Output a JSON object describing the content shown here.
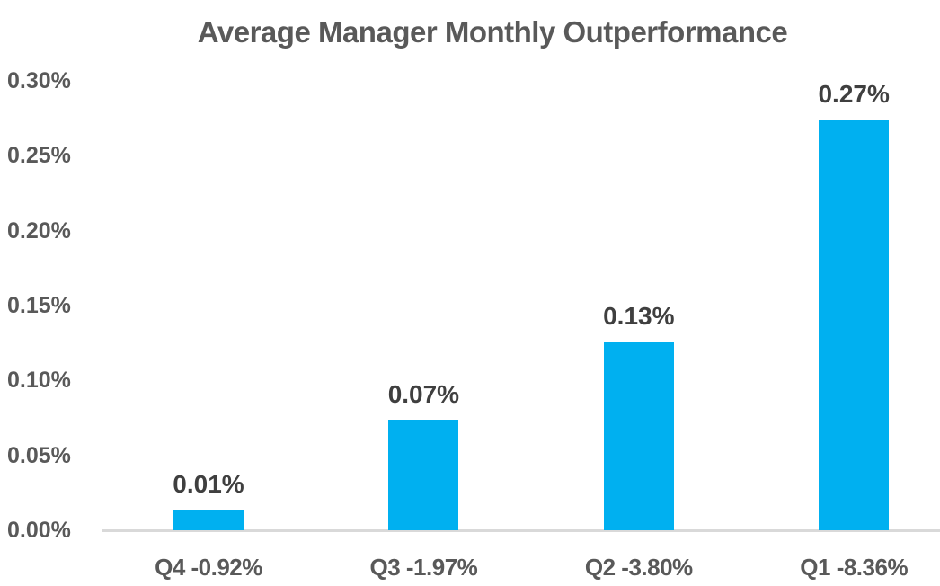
{
  "chart_data": {
    "type": "bar",
    "title": "Average Manager Monthly Outperformance",
    "categories": [
      "Q4 -0.92%",
      "Q3 -1.97%",
      "Q2 -3.80%",
      "Q1 -8.36%"
    ],
    "values": [
      0.014,
      0.074,
      0.126,
      0.274
    ],
    "data_labels": [
      "0.01%",
      "0.07%",
      "0.13%",
      "0.27%"
    ],
    "xlabel": "",
    "ylabel": "",
    "ylim": [
      0,
      0.3
    ],
    "y_tick_step": 0.05,
    "y_ticks": [
      "0.30%",
      "0.25%",
      "0.20%",
      "0.15%",
      "0.10%",
      "0.05%",
      "0.00%"
    ],
    "grid": false,
    "legend": false,
    "colors": {
      "bar": "#00B0F0",
      "title_text": "#595959",
      "axis_tick_text": "#595959",
      "data_label_text": "#3F3F3F",
      "axis_line": "#D9D9D9",
      "background": "#FFFFFF"
    }
  }
}
